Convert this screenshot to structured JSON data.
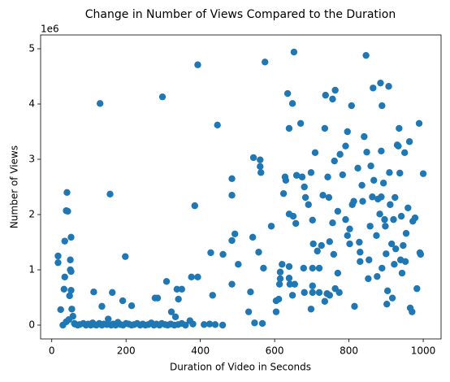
{
  "chart_data": {
    "type": "scatter",
    "title": "Change in Number of Views Compared to the Duration",
    "x_label": "Duration of Video in Seconds",
    "y_label": "Number of Views",
    "y_offset_label": "1e6",
    "color": "#1f77b4",
    "xlim": [
      -30,
      1048
    ],
    "ylim": [
      -0.25,
      5.25
    ],
    "xticks": [
      0,
      200,
      400,
      600,
      800,
      1000
    ],
    "yticks": [
      0,
      1,
      2,
      3,
      4,
      5
    ],
    "x": [
      17,
      17,
      24,
      33,
      35,
      35,
      39,
      41,
      43,
      52,
      50,
      52,
      50,
      52,
      54,
      57,
      48,
      30,
      39,
      46,
      61,
      130,
      157,
      113,
      135,
      163,
      198,
      191,
      215,
      298,
      309,
      285,
      278,
      322,
      333,
      337,
      350,
      341,
      376,
      393,
      393,
      385,
      446,
      428,
      433,
      461,
      485,
      485,
      485,
      485,
      493,
      502,
      530,
      535,
      541,
      543,
      546,
      557,
      561,
      561,
      563,
      570,
      574,
      567,
      591,
      604,
      604,
      611,
      613,
      615,
      620,
      615,
      628,
      630,
      624,
      635,
      639,
      648,
      652,
      639,
      650,
      657,
      648,
      641,
      639,
      639,
      654,
      659,
      670,
      674,
      680,
      683,
      680,
      678,
      691,
      698,
      702,
      709,
      704,
      702,
      702,
      698,
      702,
      715,
      720,
      726,
      730,
      735,
      737,
      743,
      746,
      741,
      735,
      720,
      748,
      748,
      756,
      763,
      761,
      756,
      759,
      763,
      770,
      770,
      774,
      776,
      783,
      791,
      796,
      791,
      796,
      802,
      802,
      807,
      809,
      813,
      815,
      824,
      828,
      830,
      830,
      835,
      837,
      841,
      846,
      848,
      852,
      854,
      857,
      859,
      863,
      865,
      867,
      874,
      876,
      878,
      883,
      885,
      887,
      889,
      887,
      889,
      893,
      896,
      898,
      900,
      902,
      904,
      907,
      909,
      911,
      915,
      917,
      920,
      924,
      922,
      926,
      930,
      933,
      935,
      937,
      939,
      941,
      943,
      946,
      950,
      952,
      954,
      959,
      963,
      965,
      970,
      972,
      978,
      983,
      989,
      991,
      993,
      1000,
      62,
      70,
      75,
      85,
      92,
      98,
      105,
      110,
      115,
      120,
      128,
      135,
      140,
      148,
      152,
      160,
      165,
      172,
      178,
      185,
      192,
      200,
      207,
      215,
      222,
      230,
      238,
      245,
      252,
      260,
      268,
      275,
      282,
      290,
      296,
      305,
      312,
      320,
      330,
      340,
      350,
      360,
      372,
      380,
      410,
      425,
      440,
      460
    ],
    "values": [
      1.25,
      1.13,
      0.28,
      0.65,
      0.87,
      1.52,
      2.07,
      2.4,
      2.06,
      1.59,
      1.0,
      0.97,
      1.18,
      0.63,
      0.29,
      0.16,
      0.53,
      0,
      0.06,
      0.1,
      0.03,
      4.01,
      2.37,
      0.6,
      0.34,
      0.59,
      1.24,
      0.44,
      0.35,
      4.13,
      0.79,
      0.49,
      0.49,
      0.24,
      0.15,
      0.65,
      0.65,
      0.47,
      0.87,
      0.87,
      4.71,
      2.16,
      3.62,
      1.31,
      0.54,
      1.28,
      0.74,
      1.53,
      2.35,
      2.65,
      1.65,
      1.1,
      0.24,
      0.6,
      1.59,
      3.03,
      0.04,
      1.32,
      2.99,
      2.87,
      2.76,
      1.03,
      4.76,
      0.03,
      1.79,
      0.24,
      0.44,
      0.47,
      0.74,
      0.84,
      1.1,
      0.96,
      2.68,
      2.62,
      2.38,
      4.19,
      3.56,
      4.01,
      4.94,
      2.01,
      1.97,
      1.84,
      0.54,
      0.74,
      0.85,
      1.06,
      0.74,
      2.71,
      3.65,
      2.68,
      2.5,
      2.31,
      0.59,
      1.03,
      2.18,
      2.76,
      1.9,
      3.12,
      1.47,
      1.03,
      0.59,
      0.29,
      0.71,
      1.34,
      1.03,
      1.44,
      2.35,
      3.56,
      4.16,
      2.68,
      2.31,
      0.57,
      0.43,
      0.59,
      1.51,
      0.54,
      4.09,
      4.25,
      2.97,
      1.85,
      1.28,
      0.66,
      2.06,
      0.94,
      0.59,
      3.09,
      2.72,
      3.24,
      3.5,
      1.91,
      1.62,
      1.74,
      1.47,
      3.97,
      2.18,
      2.24,
      0.34,
      2.84,
      1.5,
      1.15,
      1.32,
      2.53,
      2.24,
      3.41,
      4.88,
      3.13,
      0.84,
      1.18,
      1.79,
      2.88,
      2.32,
      4.29,
      2.62,
      1.62,
      0.88,
      2.28,
      2.01,
      4.38,
      3.15,
      1.03,
      2.32,
      3.97,
      2.57,
      1.91,
      1.79,
      1.29,
      0.38,
      0.62,
      4.32,
      2.76,
      2.18,
      1.47,
      0.49,
      1.91,
      2.31,
      1.1,
      1.38,
      3.26,
      3.24,
      3.56,
      2.75,
      1.18,
      1.97,
      0.94,
      1.44,
      3.12,
      1.15,
      1.66,
      2.12,
      3.32,
      0.31,
      0.24,
      1.88,
      1.94,
      0.66,
      3.65,
      1.31,
      1.28,
      2.74,
      0.02,
      0,
      0.01,
      0.03,
      0,
      0.02,
      0,
      0.04,
      0.01,
      0,
      0.03,
      0,
      0.02,
      0.01,
      0.11,
      0,
      0.02,
      0,
      0.05,
      0.01,
      0,
      0.03,
      0.02,
      0,
      0.01,
      0.03,
      0,
      0.02,
      0,
      0.01,
      0.04,
      0,
      0.02,
      0,
      0.03,
      0.01,
      0,
      0.02,
      0,
      0.01,
      0.03,
      0,
      0.08,
      0.02,
      0.01,
      0.02,
      0.01,
      0
    ]
  }
}
